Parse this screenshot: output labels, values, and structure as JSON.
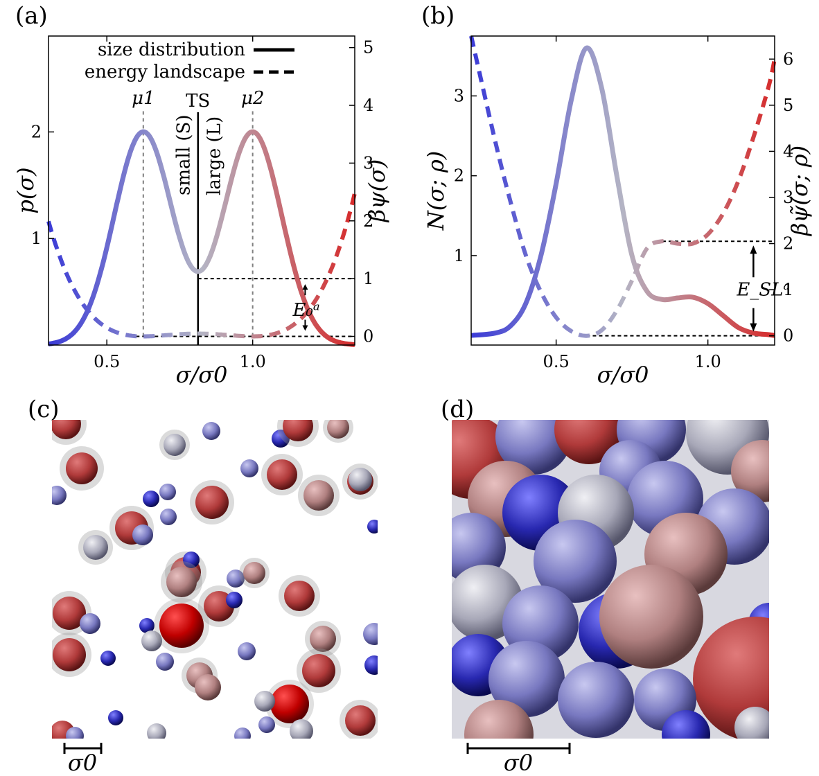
{
  "panels": {
    "a": "(a)",
    "b": "(b)",
    "c": "(c)",
    "d": "(d)"
  },
  "colors": {
    "small": "#3b3bd6",
    "mid": "#b4b4c4",
    "large": "#d62a2a"
  },
  "chart_data": [
    {
      "type": "line",
      "panel": "a",
      "xlabel": "σ/σ0",
      "ylabel": "p(σ)",
      "y2label": "βψ(σ)",
      "xlim": [
        0.3,
        1.35
      ],
      "ylim": [
        0,
        2.9
      ],
      "y2lim": [
        -0.15,
        5.2
      ],
      "xticks": [
        0.5,
        1.0
      ],
      "xtick_labels": [
        "0.5",
        "1.0"
      ],
      "yticks": [
        1,
        2
      ],
      "ytick_labels": [
        "1",
        "2"
      ],
      "y2ticks": [
        0,
        1,
        2,
        3,
        4,
        5
      ],
      "y2tick_labels": [
        "0",
        "1",
        "2",
        "3",
        "4",
        "5"
      ],
      "legend": {
        "position": "top-center",
        "entries": [
          {
            "name": "size distribution",
            "style": "solid"
          },
          {
            "name": "energy landscape",
            "style": "dashed"
          }
        ]
      },
      "distribution": {
        "name": "size distribution",
        "mu1": 0.625,
        "mu2": 1.0,
        "sigma": 0.1,
        "peak": 2.0
      },
      "energy": {
        "name": "energy landscape",
        "mu1": 0.625,
        "mu2": 1.0,
        "k": 38.5
      },
      "annotations": {
        "mu1": "μ1",
        "mu2": "μ2",
        "ts": "TS",
        "ts_x": 0.8125,
        "small": "small (S)",
        "large": "large (L)",
        "barrier": "E₀ᵃ",
        "barrier_low": 0,
        "barrier_high": 1.0
      }
    },
    {
      "type": "line",
      "panel": "b",
      "xlabel": "σ/σ0",
      "ylabel": "N(σ; ρ)",
      "y2label": "βψ̃(σ; ρ)",
      "xlim": [
        0.22,
        1.22
      ],
      "ylim": [
        -0.12,
        3.75
      ],
      "y2lim": [
        -0.2,
        6.5
      ],
      "xticks": [
        0.5,
        1.0
      ],
      "xtick_labels": [
        "0.5",
        "1.0"
      ],
      "yticks": [
        1,
        2,
        3
      ],
      "ytick_labels": [
        "1",
        "2",
        "3"
      ],
      "y2ticks": [
        0,
        1,
        2,
        3,
        4,
        5,
        6
      ],
      "y2tick_labels": [
        "0",
        "1",
        "2",
        "3",
        "4",
        "5",
        "6"
      ],
      "distribution": {
        "name": "size distribution",
        "x": [
          0.22,
          0.3,
          0.35,
          0.4,
          0.45,
          0.5,
          0.55,
          0.6,
          0.65,
          0.7,
          0.75,
          0.8,
          0.85,
          0.9,
          0.95,
          1.0,
          1.05,
          1.1,
          1.15,
          1.2,
          1.22
        ],
        "y": [
          0.0,
          0.03,
          0.12,
          0.4,
          1.0,
          1.9,
          2.95,
          3.6,
          3.1,
          2.0,
          1.0,
          0.55,
          0.45,
          0.47,
          0.48,
          0.4,
          0.25,
          0.1,
          0.03,
          0.01,
          0.0
        ]
      },
      "energy": {
        "name": "energy landscape",
        "x": [
          0.22,
          0.3,
          0.35,
          0.4,
          0.45,
          0.5,
          0.55,
          0.6,
          0.65,
          0.7,
          0.75,
          0.8,
          0.85,
          0.9,
          0.95,
          1.0,
          1.05,
          1.1,
          1.15,
          1.2,
          1.22
        ],
        "y": [
          6.5,
          4.2,
          2.9,
          1.75,
          0.95,
          0.4,
          0.1,
          0.0,
          0.12,
          0.55,
          1.2,
          1.9,
          2.05,
          2.0,
          2.0,
          2.2,
          2.65,
          3.35,
          4.3,
          5.4,
          6.0
        ]
      },
      "annotations": {
        "barrier": "E_SLᵃ",
        "barrier_low": 0,
        "barrier_high": 2.05
      }
    }
  ],
  "snapshots": {
    "c_scale": "σ0",
    "d_scale": "σ0"
  }
}
